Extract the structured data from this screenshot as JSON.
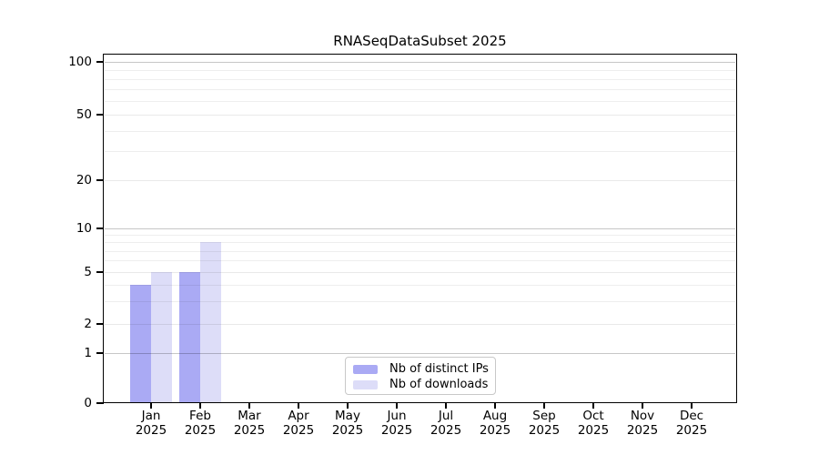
{
  "chart_data": {
    "type": "bar",
    "title": "RNASeqDataSubset 2025",
    "categories": [
      "Jan",
      "Feb",
      "Mar",
      "Apr",
      "May",
      "Jun",
      "Jul",
      "Aug",
      "Sep",
      "Oct",
      "Nov",
      "Dec"
    ],
    "x_tick_second_line": "2025",
    "series": [
      {
        "name": "Nb of distinct IPs",
        "color": "#aaaaf4",
        "values": [
          4,
          5,
          0,
          0,
          0,
          0,
          0,
          0,
          0,
          0,
          0,
          0
        ]
      },
      {
        "name": "Nb of downloads",
        "color": "#ddddf8",
        "values": [
          5,
          8,
          0,
          0,
          0,
          0,
          0,
          0,
          0,
          0,
          0,
          0
        ]
      }
    ],
    "y_axis": {
      "ticks": [
        0,
        1,
        2,
        5,
        10,
        20,
        50,
        100
      ],
      "scale": "log-like (log above 1, linear 0-1)",
      "major_gridlines": [
        1,
        10,
        100
      ],
      "mid_gridlines": [
        2,
        5,
        20,
        50
      ],
      "minor_gridlines": [
        3,
        4,
        6,
        7,
        8,
        9,
        30,
        40,
        60,
        70,
        80,
        90
      ]
    },
    "xlabel": "",
    "ylabel": "",
    "grid": "horizontal",
    "legend": {
      "position": "lower center",
      "entries": [
        "Nb of distinct IPs",
        "Nb of downloads"
      ]
    }
  }
}
